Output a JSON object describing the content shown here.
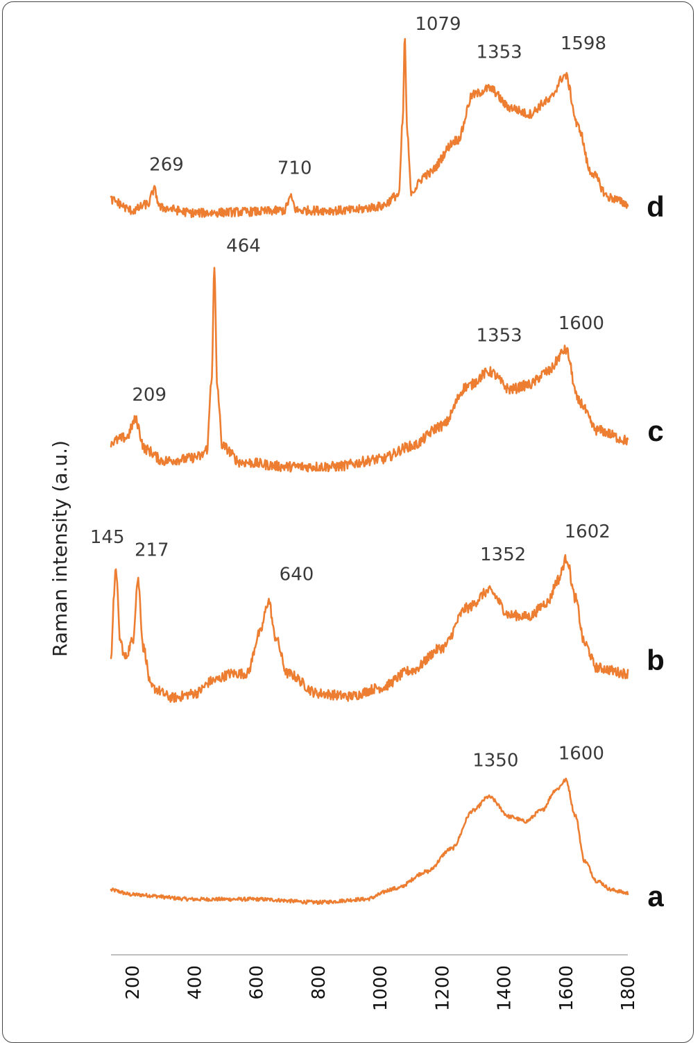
{
  "chart_data": {
    "type": "line",
    "ylabel": "Raman intensity (a.u.)",
    "xlabel": "",
    "xlim": [
      130,
      1800
    ],
    "x_ticks": [
      "200",
      "400",
      "600",
      "800",
      "1000",
      "1200",
      "1400",
      "1600",
      "1800"
    ],
    "x_tick_values": [
      200,
      400,
      600,
      800,
      1000,
      1200,
      1400,
      1600,
      1800
    ],
    "line_color": "#ED7D31",
    "grid": false,
    "legend": "none",
    "series": [
      {
        "name": "a",
        "peaks": [
          {
            "x": 1350,
            "label": "1350"
          },
          {
            "x": 1600,
            "label": "1600"
          }
        ],
        "points": [
          [
            130,
            0.06
          ],
          [
            200,
            0.03
          ],
          [
            400,
            0.0
          ],
          [
            600,
            0.0
          ],
          [
            800,
            -0.02
          ],
          [
            950,
            0.0
          ],
          [
            1050,
            0.07
          ],
          [
            1150,
            0.18
          ],
          [
            1230,
            0.33
          ],
          [
            1300,
            0.58
          ],
          [
            1350,
            0.67
          ],
          [
            1420,
            0.54
          ],
          [
            1470,
            0.51
          ],
          [
            1520,
            0.58
          ],
          [
            1570,
            0.72
          ],
          [
            1600,
            0.78
          ],
          [
            1630,
            0.55
          ],
          [
            1660,
            0.25
          ],
          [
            1700,
            0.12
          ],
          [
            1750,
            0.06
          ],
          [
            1800,
            0.04
          ]
        ]
      },
      {
        "name": "b",
        "peaks": [
          {
            "x": 145,
            "label": "145"
          },
          {
            "x": 217,
            "label": "217"
          },
          {
            "x": 640,
            "label": "640"
          },
          {
            "x": 1352,
            "label": "1352"
          },
          {
            "x": 1602,
            "label": "1602"
          }
        ],
        "points": [
          [
            130,
            0.35
          ],
          [
            140,
            0.75
          ],
          [
            145,
            0.98
          ],
          [
            160,
            0.45
          ],
          [
            175,
            0.33
          ],
          [
            200,
            0.45
          ],
          [
            217,
            0.88
          ],
          [
            235,
            0.4
          ],
          [
            260,
            0.12
          ],
          [
            330,
            0.05
          ],
          [
            400,
            0.08
          ],
          [
            460,
            0.17
          ],
          [
            520,
            0.22
          ],
          [
            570,
            0.22
          ],
          [
            610,
            0.5
          ],
          [
            640,
            0.73
          ],
          [
            660,
            0.48
          ],
          [
            700,
            0.22
          ],
          [
            800,
            0.08
          ],
          [
            900,
            0.06
          ],
          [
            1000,
            0.12
          ],
          [
            1100,
            0.24
          ],
          [
            1200,
            0.4
          ],
          [
            1280,
            0.68
          ],
          [
            1352,
            0.8
          ],
          [
            1420,
            0.63
          ],
          [
            1480,
            0.62
          ],
          [
            1540,
            0.72
          ],
          [
            1575,
            0.88
          ],
          [
            1602,
            1.03
          ],
          [
            1630,
            0.75
          ],
          [
            1660,
            0.43
          ],
          [
            1700,
            0.26
          ],
          [
            1800,
            0.22
          ]
        ]
      },
      {
        "name": "c",
        "peaks": [
          {
            "x": 209,
            "label": "209"
          },
          {
            "x": 464,
            "label": "464"
          },
          {
            "x": 1353,
            "label": "1353"
          },
          {
            "x": 1600,
            "label": "1600"
          }
        ],
        "points": [
          [
            130,
            0.17
          ],
          [
            180,
            0.2
          ],
          [
            209,
            0.32
          ],
          [
            240,
            0.12
          ],
          [
            300,
            0.04
          ],
          [
            360,
            0.05
          ],
          [
            420,
            0.07
          ],
          [
            440,
            0.12
          ],
          [
            455,
            0.6
          ],
          [
            464,
            1.35
          ],
          [
            473,
            0.55
          ],
          [
            490,
            0.14
          ],
          [
            550,
            0.03
          ],
          [
            700,
            0.0
          ],
          [
            850,
            0.0
          ],
          [
            1000,
            0.05
          ],
          [
            1100,
            0.14
          ],
          [
            1200,
            0.28
          ],
          [
            1280,
            0.55
          ],
          [
            1353,
            0.65
          ],
          [
            1420,
            0.53
          ],
          [
            1480,
            0.56
          ],
          [
            1540,
            0.65
          ],
          [
            1600,
            0.8
          ],
          [
            1640,
            0.45
          ],
          [
            1700,
            0.25
          ],
          [
            1800,
            0.18
          ]
        ]
      },
      {
        "name": "d",
        "peaks": [
          {
            "x": 269,
            "label": "269"
          },
          {
            "x": 710,
            "label": "710"
          },
          {
            "x": 1079,
            "label": "1079"
          },
          {
            "x": 1353,
            "label": "1353"
          },
          {
            "x": 1598,
            "label": "1598"
          }
        ],
        "points": [
          [
            130,
            0.08
          ],
          [
            200,
            0.0
          ],
          [
            250,
            0.05
          ],
          [
            269,
            0.16
          ],
          [
            290,
            0.02
          ],
          [
            400,
            -0.02
          ],
          [
            600,
            -0.01
          ],
          [
            690,
            0.0
          ],
          [
            710,
            0.1
          ],
          [
            730,
            0.0
          ],
          [
            900,
            0.0
          ],
          [
            1000,
            0.03
          ],
          [
            1060,
            0.12
          ],
          [
            1073,
            0.7
          ],
          [
            1079,
            1.35
          ],
          [
            1087,
            0.6
          ],
          [
            1100,
            0.15
          ],
          [
            1150,
            0.28
          ],
          [
            1250,
            0.55
          ],
          [
            1300,
            0.9
          ],
          [
            1353,
            0.95
          ],
          [
            1420,
            0.8
          ],
          [
            1480,
            0.75
          ],
          [
            1540,
            0.85
          ],
          [
            1598,
            1.05
          ],
          [
            1640,
            0.65
          ],
          [
            1680,
            0.3
          ],
          [
            1740,
            0.1
          ],
          [
            1800,
            0.05
          ]
        ]
      }
    ]
  }
}
